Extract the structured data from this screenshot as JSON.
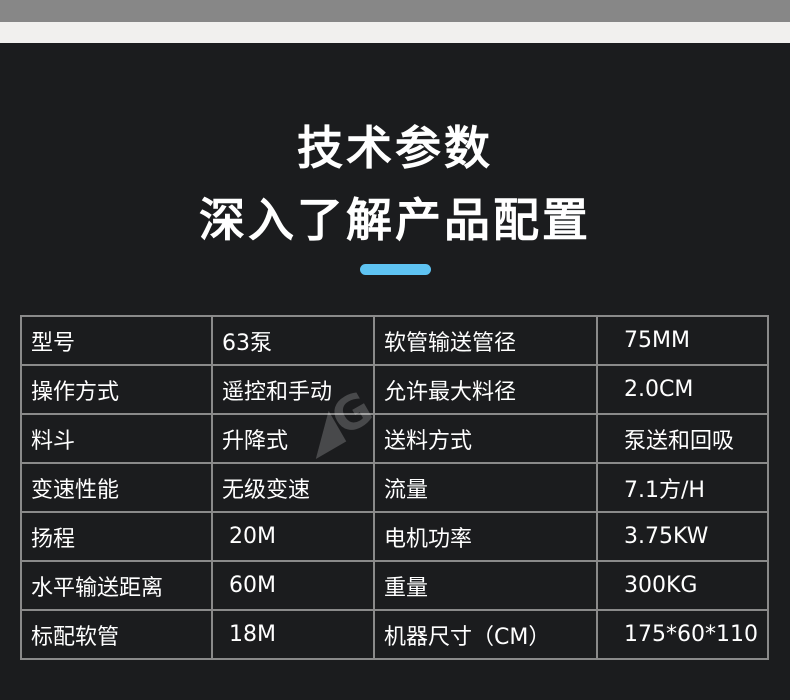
{
  "title": "技术参数",
  "subtitle": "深入了解产品配置",
  "accent": "#5ec3f2",
  "rows": [
    [
      "型号",
      "63泵",
      "软管输送管径",
      "75MM"
    ],
    [
      "操作方式",
      "遥控和手动",
      "允许最大料径",
      "2.0CM"
    ],
    [
      "料斗",
      "升降式",
      "送料方式",
      "泵送和回吸"
    ],
    [
      "变速性能",
      "无级变速",
      "流量",
      "7.1方/H"
    ],
    [
      "扬程",
      "20M",
      "电机功率",
      "3.75KW"
    ],
    [
      "水平输送距离",
      "60M",
      "重量",
      "300KG"
    ],
    [
      "标配软管",
      "18M",
      "机器尺寸（CM）",
      "175*60*110"
    ]
  ]
}
